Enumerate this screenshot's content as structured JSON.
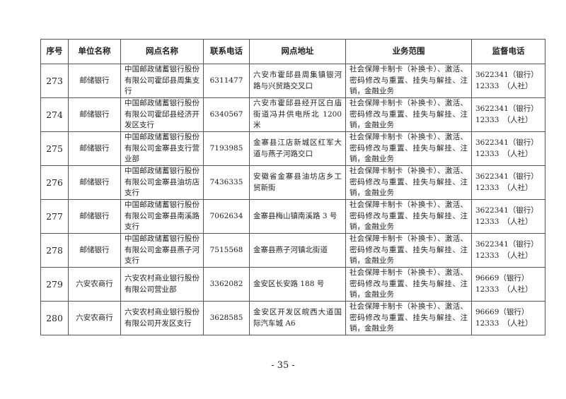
{
  "headers": [
    "序号",
    "单位名称",
    "网点名称",
    "联系电话",
    "网点地址",
    "业务范围",
    "监督电话"
  ],
  "rows": [
    {
      "no": "273",
      "unit": "邮储银行",
      "name": "中国邮政储蓄银行股份有限公司霍邱县周集支行",
      "phone": "6311477",
      "address": "六安市霍邱县周集镇银河路与兴贸路交叉口",
      "scope": "社会保障卡制卡（补换卡）、激活、密码修改与重置、挂失与解挂、注销，金融业务",
      "sup1": "3622341（银行）",
      "sup2": "12333　（人社）"
    },
    {
      "no": "274",
      "unit": "邮储银行",
      "name": "中国邮政储蓄银行股份有限公司霍邱县经济开发区支行",
      "phone": "6340567",
      "address": "六安市霍邱县经开区白庙街道冯井供电所北 1200 米",
      "scope": "社会保障卡制卡（补换卡）、激活、密码修改与重置、挂失与解挂、注销，金融业务",
      "sup1": "3622341（银行）",
      "sup2": "12333　（人社）"
    },
    {
      "no": "275",
      "unit": "邮储银行",
      "name": "中国邮政储蓄银行股份有限公司金寨县支行营业部",
      "phone": "7193985",
      "address": "金寨县江店新城区红军大道与燕子河路交口",
      "scope": "社会保障卡制卡（补换卡）、激活、密码修改与重置、挂失与解挂、注销，金融业务",
      "sup1": "3622341（银行）",
      "sup2": "12333　（人社）"
    },
    {
      "no": "276",
      "unit": "邮储银行",
      "name": "中国邮政储蓄银行股份有限公司金寨县油坊店支行",
      "phone": "7436335",
      "address": "安徽省金寨县油坊店乡工贸新街",
      "scope": "社会保障卡制卡（补换卡）、激活、密码修改与重置、挂失与解挂、注销，金融业务",
      "sup1": "3622341（银行）",
      "sup2": "12333　（人社）"
    },
    {
      "no": "277",
      "unit": "邮储银行",
      "name": "中国邮政储蓄银行股份有限公司金寨县南溪路支行",
      "phone": "7062634",
      "address": "金寨县梅山镇南溪路 3 号",
      "scope": "社会保障卡制卡（补换卡）、激活、密码修改与重置、挂失与解挂、注销，金融业务",
      "sup1": "3622341（银行）",
      "sup2": "12333　（人社）"
    },
    {
      "no": "278",
      "unit": "邮储银行",
      "name": "中国邮政储蓄银行股份有限公司金寨县燕子河支行",
      "phone": "7515568",
      "address": "金寨县燕子河镇北街道",
      "scope": "社会保障卡制卡（补换卡）、激活、密码修改与重置、挂失与解挂、注销，金融业务",
      "sup1": "3622341（银行）",
      "sup2": "12333　（人社）"
    },
    {
      "no": "279",
      "unit": "六安农商行",
      "name": "六安农村商业银行股份有限公司营业部",
      "phone": "3362082",
      "address": "金安区长安路 188 号",
      "scope": "社会保障卡制卡（补换卡）、激活、密码修改与重置、挂失与解挂、注销，金融业务",
      "sup1": "96669（银行）",
      "sup2": "12333　（人社）"
    },
    {
      "no": "280",
      "unit": "六安农商行",
      "name": "六安农村商业银行股份有限公司开发区支行",
      "phone": "3628585",
      "address": "金安区开发区皖西大道国际汽车城 A6",
      "scope": "社会保障卡制卡（补换卡）、激活、密码修改与重置、挂失与解挂、注销，金融业务",
      "sup1": "96669（银行）",
      "sup2": "12333　（人社）"
    }
  ],
  "page_number": "- 35 -"
}
